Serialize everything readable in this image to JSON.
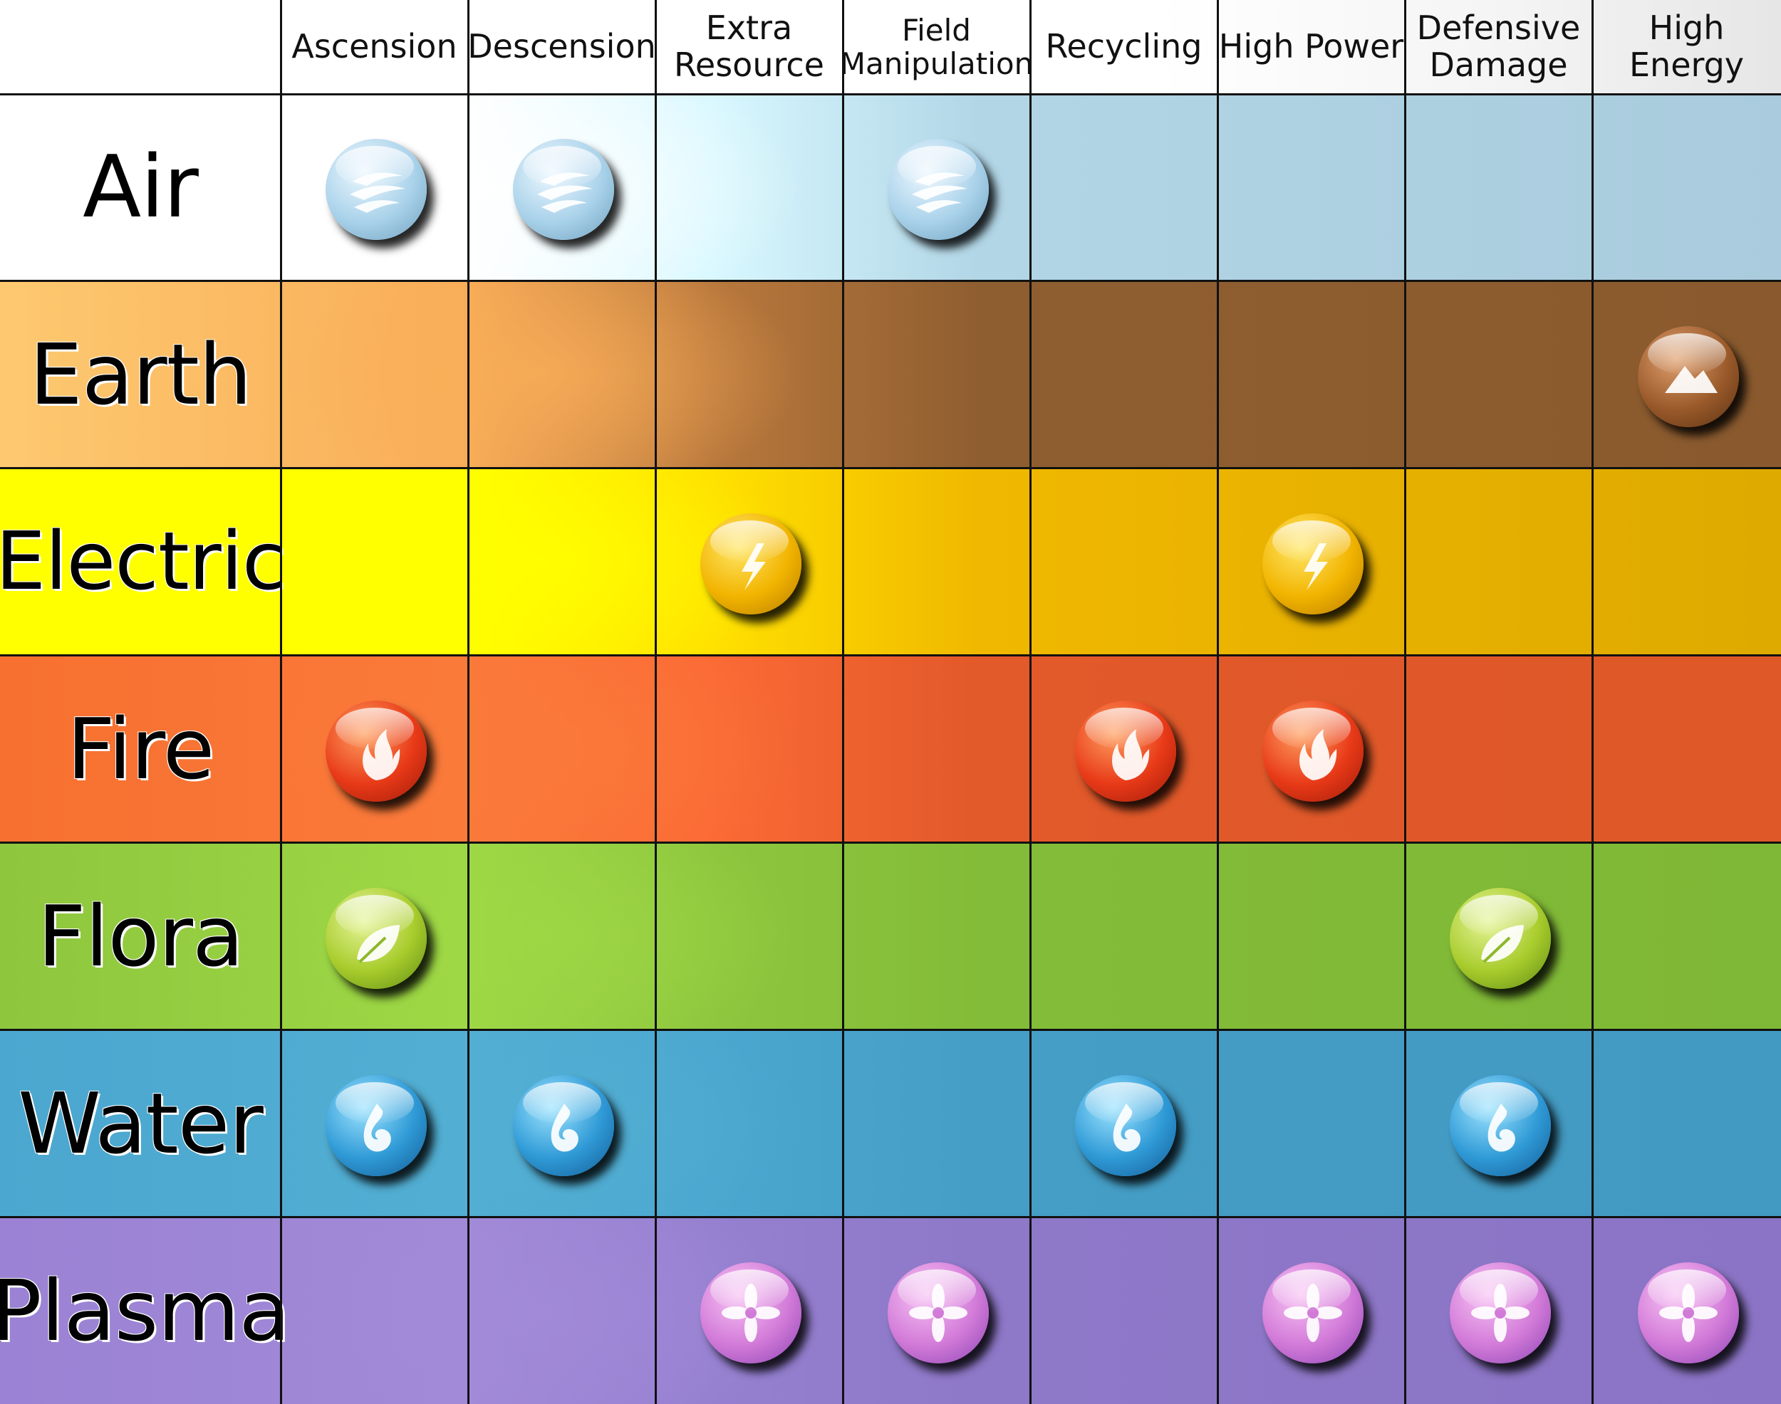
{
  "columns": [
    {
      "label": "Ascension"
    },
    {
      "label": "Descension"
    },
    {
      "label": "Extra\nResource"
    },
    {
      "label": "Field\nManipulation"
    },
    {
      "label": "Recycling"
    },
    {
      "label": "High Power"
    },
    {
      "label": "Defensive\nDamage"
    },
    {
      "label": "High\nEnergy"
    }
  ],
  "rows": [
    {
      "label": "Air",
      "icon": "air-swirl-icon",
      "colors": [
        "#ffffff",
        "#ffffff",
        "#d8f8ff",
        "#b2d6e6",
        "#a9cbdd"
      ],
      "marks": [
        1,
        1,
        0,
        1,
        0,
        0,
        0,
        0
      ]
    },
    {
      "label": "Earth",
      "icon": "mountain-icon",
      "colors": [
        "#fdc970",
        "#f9ad58",
        "#b9783c",
        "#8f5e30",
        "#8a5a2e"
      ],
      "marks": [
        0,
        0,
        0,
        0,
        0,
        0,
        0,
        1
      ]
    },
    {
      "label": "Electric",
      "icon": "lightning-icon",
      "colors": [
        "#ffff00",
        "#ffff00",
        "#ffe000",
        "#f0b800",
        "#deaa00"
      ],
      "marks": [
        0,
        0,
        1,
        0,
        0,
        1,
        0,
        0
      ]
    },
    {
      "label": "Fire",
      "icon": "flame-icon",
      "colors": [
        "#f77030",
        "#fa7a3a",
        "#fb6a35",
        "#e2592a",
        "#de5828"
      ],
      "marks": [
        1,
        0,
        0,
        0,
        1,
        1,
        0,
        0
      ]
    },
    {
      "label": "Flora",
      "icon": "leaf-icon",
      "colors": [
        "#8ec63e",
        "#9ed845",
        "#8ec63e",
        "#83bc38",
        "#7fb836"
      ],
      "marks": [
        1,
        0,
        0,
        0,
        0,
        0,
        1,
        0
      ]
    },
    {
      "label": "Water",
      "icon": "water-drop-icon",
      "colors": [
        "#4ba7cf",
        "#52aed2",
        "#4ba7cf",
        "#459ec6",
        "#4299c1"
      ],
      "marks": [
        1,
        1,
        0,
        0,
        1,
        0,
        1,
        0
      ]
    },
    {
      "label": "Plasma",
      "icon": "plasma-flower-icon",
      "colors": [
        "#9b82d4",
        "#a28ad8",
        "#9580d0",
        "#8e78c8",
        "#8b74c5"
      ],
      "marks": [
        0,
        0,
        1,
        1,
        0,
        1,
        1,
        1
      ]
    }
  ]
}
